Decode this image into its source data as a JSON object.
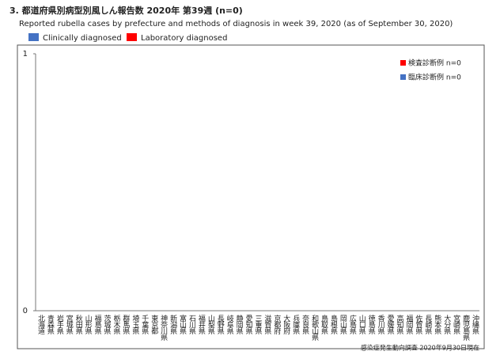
{
  "chart_data": {
    "type": "bar",
    "title": "3. 都道府県別病型別風しん報告数  2020年 第39週 (n=0)",
    "subtitle": "Reported rubella cases by prefecture and methods of diagnosis in week 39, 2020 (as of September 30, 2020)",
    "source": "感染症発生動向調査 2020年9月30日現在",
    "categories": [
      "北海道",
      "青森県",
      "岩手県",
      "宮城県",
      "秋田県",
      "山形県",
      "福島県",
      "茨城県",
      "栃木県",
      "群馬県",
      "埼玉県",
      "千葉県",
      "東京都",
      "神奈川県",
      "新潟県",
      "富山県",
      "石川県",
      "福井県",
      "山梨県",
      "長野県",
      "岐阜県",
      "静岡県",
      "愛知県",
      "三重県",
      "滋賀県",
      "京都府",
      "大阪府",
      "兵庫県",
      "奈良県",
      "和歌山県",
      "鳥取県",
      "島根県",
      "岡山県",
      "広島県",
      "山口県",
      "徳島県",
      "香川県",
      "愛媛県",
      "高知県",
      "福岡県",
      "佐賀県",
      "長崎県",
      "熊本県",
      "大分県",
      "宮崎県",
      "鹿児島県",
      "沖縄県"
    ],
    "series": [
      {
        "name": "Clinically diagnosed",
        "inner_legend": "臨床診断例 n=0",
        "color": "#4472c4",
        "values": [
          0,
          0,
          0,
          0,
          0,
          0,
          0,
          0,
          0,
          0,
          0,
          0,
          0,
          0,
          0,
          0,
          0,
          0,
          0,
          0,
          0,
          0,
          0,
          0,
          0,
          0,
          0,
          0,
          0,
          0,
          0,
          0,
          0,
          0,
          0,
          0,
          0,
          0,
          0,
          0,
          0,
          0,
          0,
          0,
          0,
          0,
          0
        ]
      },
      {
        "name": "Laboratory diagnosed",
        "inner_legend": "検査診断例 n=0",
        "color": "#ff0000",
        "values": [
          0,
          0,
          0,
          0,
          0,
          0,
          0,
          0,
          0,
          0,
          0,
          0,
          0,
          0,
          0,
          0,
          0,
          0,
          0,
          0,
          0,
          0,
          0,
          0,
          0,
          0,
          0,
          0,
          0,
          0,
          0,
          0,
          0,
          0,
          0,
          0,
          0,
          0,
          0,
          0,
          0,
          0,
          0,
          0,
          0,
          0,
          0
        ]
      }
    ],
    "ylim": [
      0,
      1
    ],
    "yticks": [
      0,
      1
    ],
    "grid": false
  }
}
